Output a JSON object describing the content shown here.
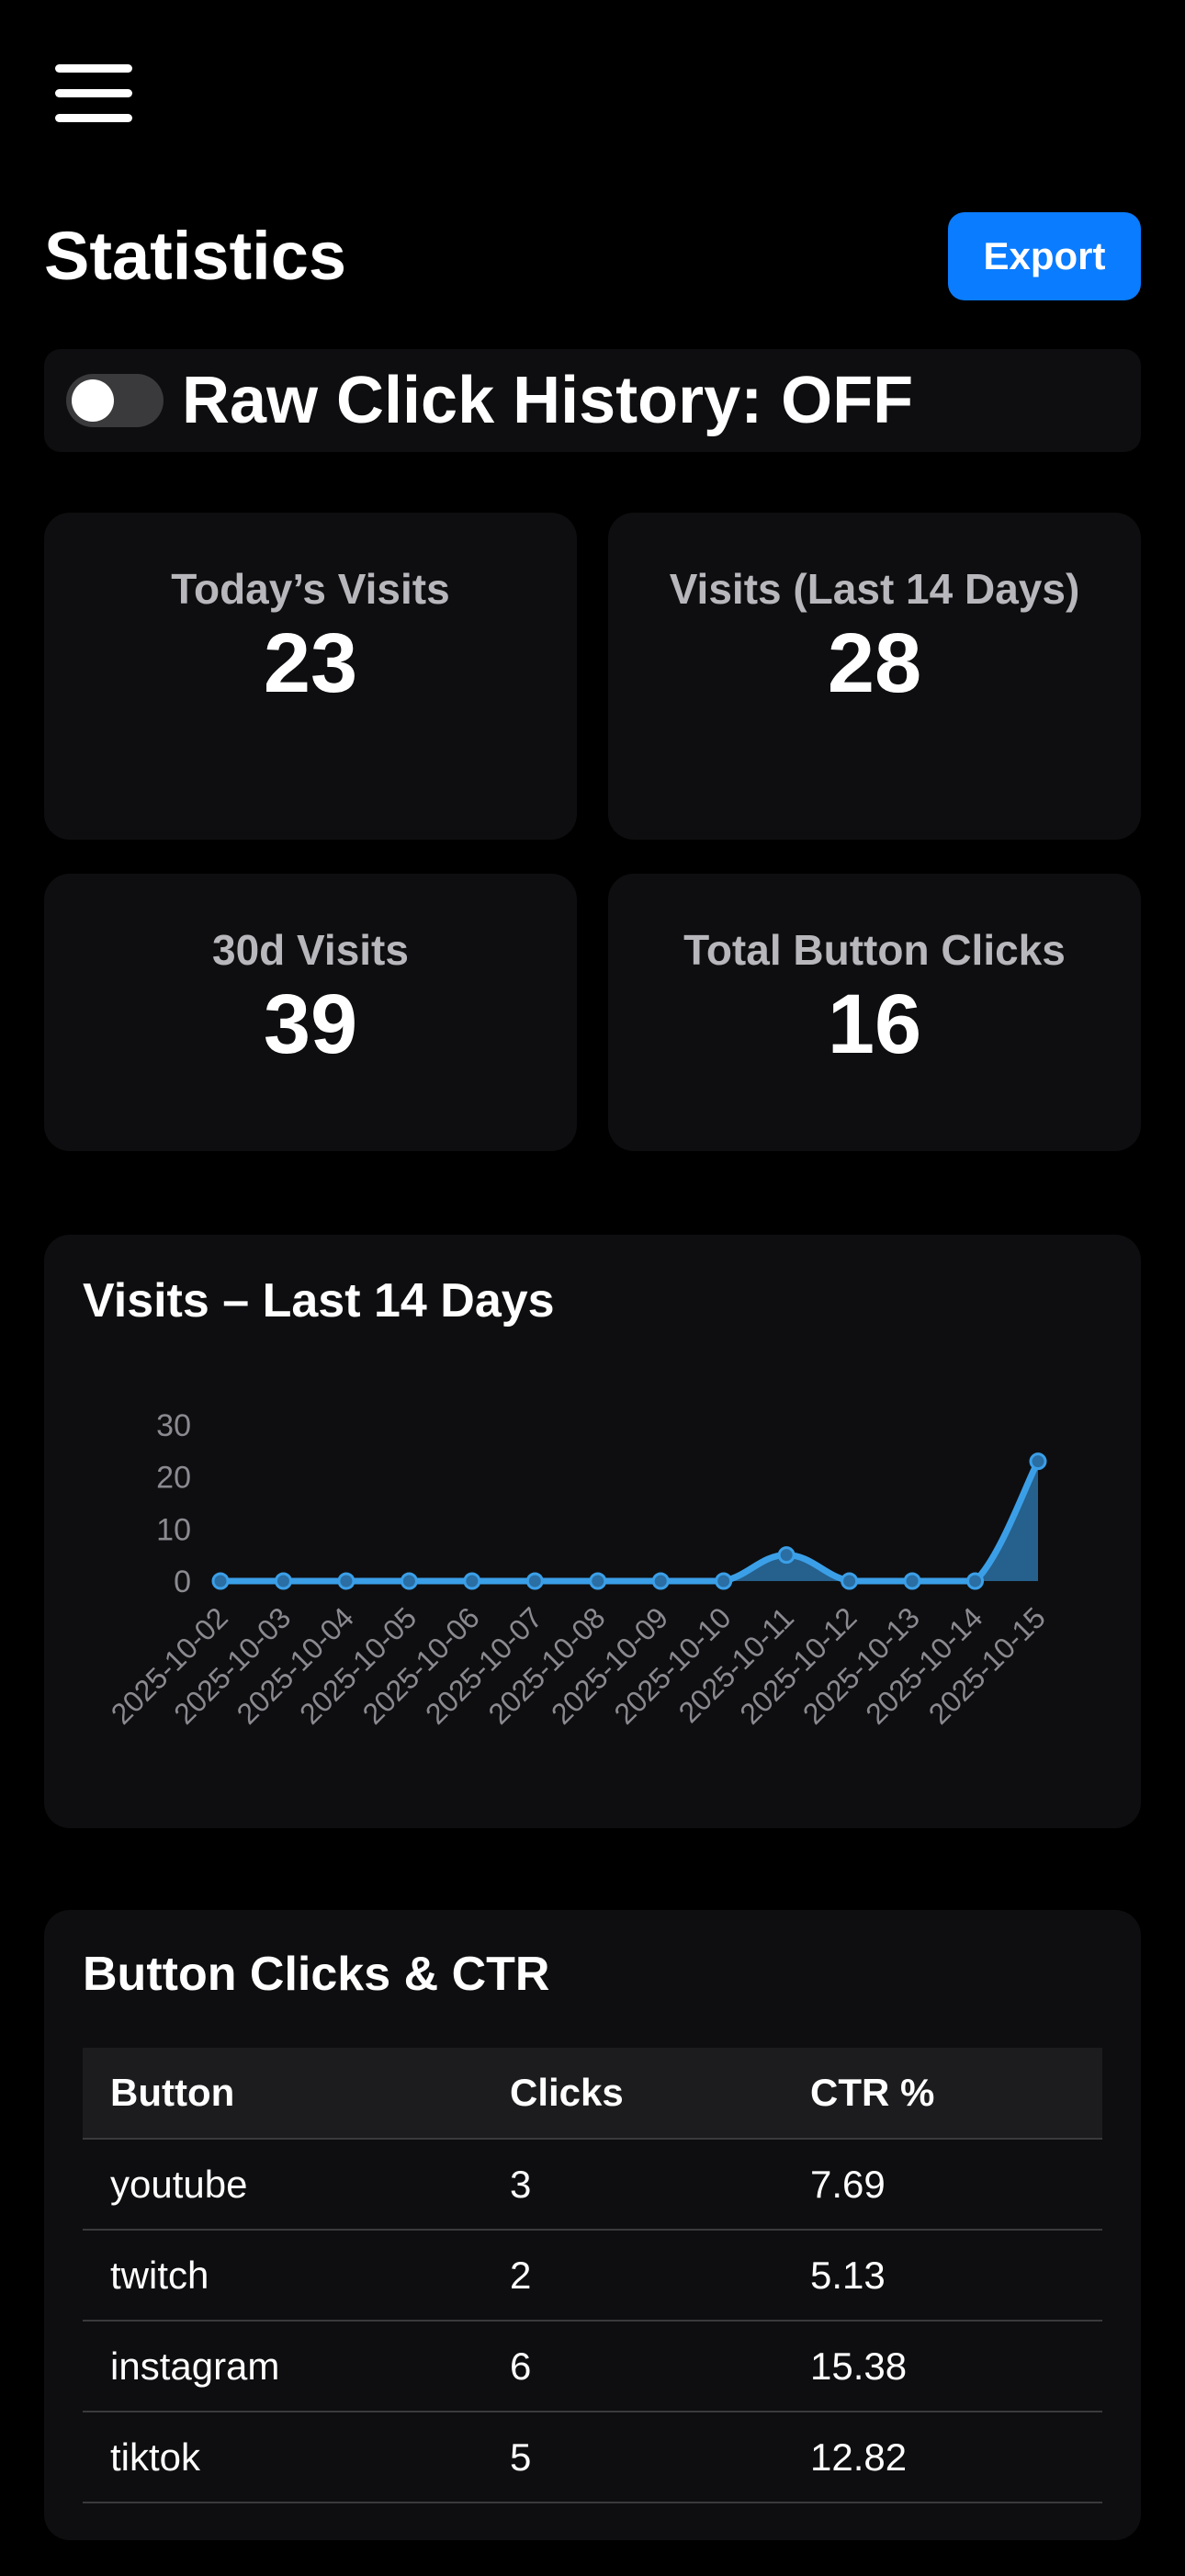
{
  "header": {
    "title": "Statistics",
    "export_label": "Export",
    "menu_icon": "hamburger-icon"
  },
  "raw_click_toggle": {
    "label": "Raw Click History: OFF",
    "enabled": false
  },
  "stats": {
    "today": {
      "label": "Today’s Visits",
      "value": "23"
    },
    "last14": {
      "label": "Visits (Last 14 Days)",
      "value": "28"
    },
    "last30": {
      "label": "30d Visits",
      "value": "39"
    },
    "clicks": {
      "label": "Total Button Clicks",
      "value": "16"
    }
  },
  "chart_data": {
    "type": "area",
    "title": "Visits – Last 14 Days",
    "categories": [
      "2025-10-02",
      "2025-10-03",
      "2025-10-04",
      "2025-10-05",
      "2025-10-06",
      "2025-10-07",
      "2025-10-08",
      "2025-10-09",
      "2025-10-10",
      "2025-10-11",
      "2025-10-12",
      "2025-10-13",
      "2025-10-14",
      "2025-10-15"
    ],
    "values": [
      0,
      0,
      0,
      0,
      0,
      0,
      0,
      0,
      0,
      5,
      0,
      0,
      0,
      23
    ],
    "ylim": [
      0,
      30
    ],
    "yticks": [
      0,
      10,
      20,
      30
    ],
    "grid": false,
    "legend": "none",
    "line_color": "#3b9fe8",
    "fill_color": "#2a6ea3"
  },
  "table": {
    "title": "Button Clicks & CTR",
    "headers": [
      "Button",
      "Clicks",
      "CTR %"
    ],
    "rows": [
      [
        "youtube",
        "3",
        "7.69"
      ],
      [
        "twitch",
        "2",
        "5.13"
      ],
      [
        "instagram",
        "6",
        "15.38"
      ],
      [
        "tiktok",
        "5",
        "12.82"
      ]
    ]
  }
}
